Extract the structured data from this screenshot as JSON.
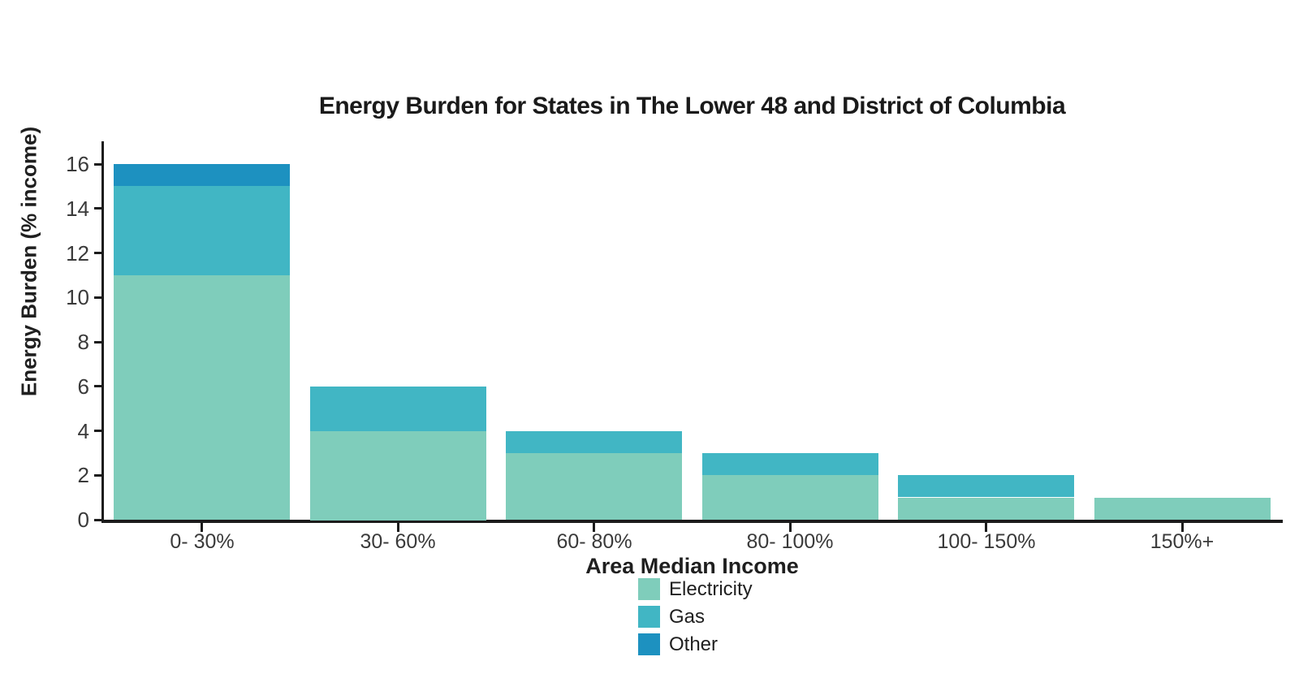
{
  "page": {
    "background": "#ffffff"
  },
  "colors": {
    "axis": "#1c1c1c",
    "tick_label": "#3a3a3a",
    "title_text": "#1a1a1a",
    "electricity": "#7fcdbb",
    "gas": "#41b6c4",
    "other": "#1d91c0"
  },
  "chart_data": {
    "type": "bar",
    "stacked": true,
    "title": "Energy Burden for States in The Lower 48 and District of Columbia",
    "xlabel": "Area Median Income",
    "ylabel": "Energy Burden (% income)",
    "categories": [
      "0- 30%",
      "30- 60%",
      "60- 80%",
      "80- 100%",
      "100- 150%",
      "150%+"
    ],
    "series": [
      {
        "name": "Electricity",
        "color": "#7fcdbb",
        "values": [
          11,
          4,
          3,
          2,
          1,
          1
        ]
      },
      {
        "name": "Gas",
        "color": "#41b6c4",
        "values": [
          4,
          2,
          1,
          1,
          1,
          0
        ]
      },
      {
        "name": "Other",
        "color": "#1d91c0",
        "values": [
          1,
          0,
          0,
          0,
          0,
          0
        ]
      }
    ],
    "ylim": [
      0,
      16
    ],
    "ytick_step": 2,
    "yticks": [
      0,
      2,
      4,
      6,
      8,
      10,
      12,
      14,
      16
    ],
    "grid": false,
    "legend_position": "bottom"
  }
}
